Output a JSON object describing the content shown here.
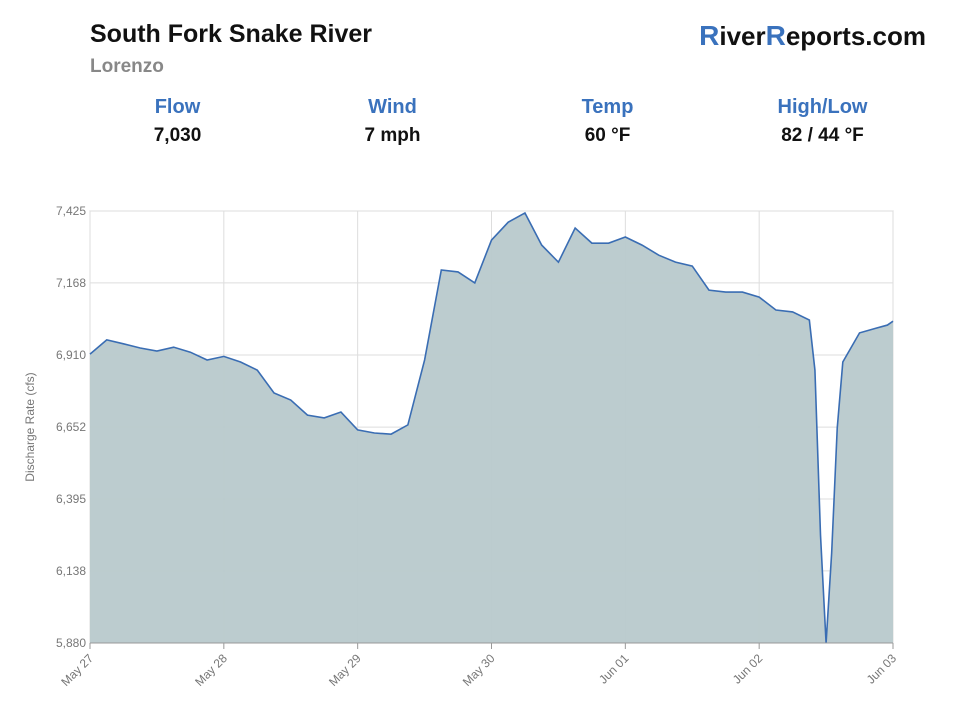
{
  "header": {
    "title": "South Fork Snake River",
    "subtitle": "Lorenzo",
    "logo": [
      "R",
      "iver",
      "R",
      "eports.com"
    ],
    "stats": [
      {
        "label": "Flow",
        "value": "7,030"
      },
      {
        "label": "Wind",
        "value": "7 mph"
      },
      {
        "label": "Temp",
        "value": "60 °F"
      },
      {
        "label": "High/Low",
        "value": "82 / 44 °F"
      }
    ]
  },
  "chart_data": {
    "type": "area",
    "y_label": "Discharge Rate (cfs)",
    "x": [
      0,
      3,
      6,
      9,
      12,
      15,
      18,
      21,
      24,
      27,
      30,
      33,
      36,
      39,
      42,
      45,
      48,
      51,
      54,
      57,
      60,
      63,
      66,
      69,
      72,
      75,
      78,
      81,
      84,
      87,
      90,
      93,
      96,
      99,
      102,
      105,
      108,
      111,
      114,
      117,
      120,
      123,
      126,
      129,
      130,
      131,
      132,
      133,
      134,
      135,
      138,
      141,
      143,
      144
    ],
    "series": [
      {
        "name": "Discharge",
        "color": "#3a6db3",
        "fill": "#b8c9cc",
        "values": [
          6913,
          6964,
          6950,
          6935,
          6924,
          6938,
          6920,
          6892,
          6905,
          6885,
          6856,
          6774,
          6749,
          6695,
          6685,
          6706,
          6642,
          6631,
          6627,
          6660,
          6892,
          7214,
          7207,
          7168,
          7321,
          7385,
          7418,
          7303,
          7242,
          7364,
          7310,
          7310,
          7332,
          7303,
          7267,
          7242,
          7228,
          7142,
          7135,
          7135,
          7117,
          7071,
          7064,
          7035,
          6856,
          6266,
          5880,
          6202,
          6649,
          6885,
          6989,
          7006,
          7017,
          7031
        ]
      }
    ],
    "xlim": [
      0,
      144
    ],
    "xticks": [
      {
        "value": 0,
        "label": "May 27"
      },
      {
        "value": 24,
        "label": "May 28"
      },
      {
        "value": 48,
        "label": "May 29"
      },
      {
        "value": 72,
        "label": "May 30"
      },
      {
        "value": 96,
        "label": "Jun 01"
      },
      {
        "value": 120,
        "label": "Jun 02"
      },
      {
        "value": 144,
        "label": "Jun 03"
      }
    ],
    "ylim": [
      5880,
      7425
    ],
    "yticks": [
      {
        "value": 5880,
        "label": "5,880"
      },
      {
        "value": 6138,
        "label": "6,138"
      },
      {
        "value": 6395,
        "label": "6,395"
      },
      {
        "value": 6652,
        "label": "6,652"
      },
      {
        "value": 6910,
        "label": "6,910"
      },
      {
        "value": 7168,
        "label": "7,168"
      },
      {
        "value": 7425,
        "label": "7,425"
      }
    ],
    "grid": true
  }
}
